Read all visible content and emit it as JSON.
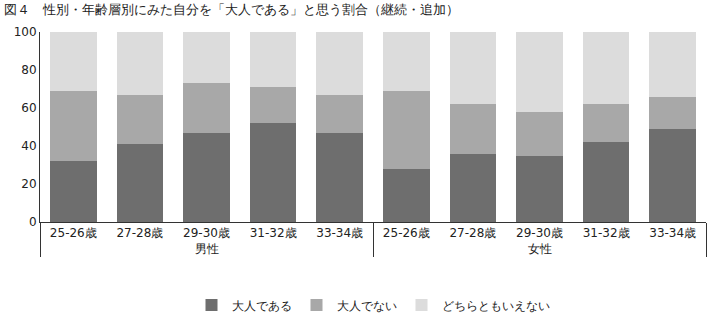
{
  "chart_data": {
    "type": "bar",
    "title": "図４　性別・年齢層別にみた自分を「大人である」と思う割合（継続・追加）",
    "categories": [
      "25-26歳",
      "27-28歳",
      "29-30歳",
      "31-32歳",
      "33-34歳",
      "25-26歳",
      "27-28歳",
      "29-30歳",
      "31-32歳",
      "33-34歳"
    ],
    "category_groups": [
      "男性",
      "男性",
      "男性",
      "男性",
      "男性",
      "女性",
      "女性",
      "女性",
      "女性",
      "女性"
    ],
    "series": [
      {
        "name": "大人である",
        "color": "#6e6e6e",
        "values": [
          32,
          41,
          47,
          52,
          47,
          28,
          36,
          35,
          42,
          49
        ]
      },
      {
        "name": "大人でない",
        "color": "#a8a8a8",
        "values": [
          37,
          26,
          26,
          19,
          20,
          41,
          26,
          23,
          20,
          17
        ]
      },
      {
        "name": "どちらともいえない",
        "color": "#dcdcdc",
        "values": [
          31,
          33,
          27,
          29,
          33,
          31,
          38,
          42,
          38,
          34
        ]
      }
    ],
    "stacked": true,
    "ylim": [
      0,
      100
    ],
    "yticks": [
      0,
      20,
      40,
      60,
      80,
      100
    ],
    "grid": false,
    "legend": "bottom"
  }
}
